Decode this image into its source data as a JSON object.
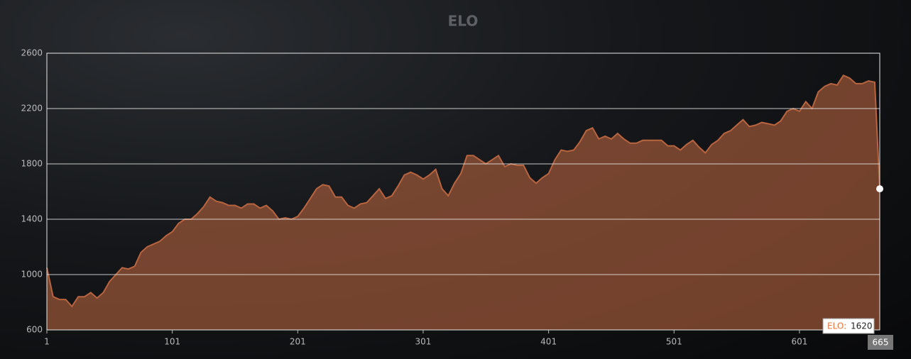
{
  "chart_data": {
    "type": "area",
    "title": "ELO",
    "x": [
      1,
      6,
      11,
      16,
      21,
      26,
      31,
      36,
      41,
      46,
      51,
      56,
      61,
      66,
      71,
      76,
      81,
      86,
      91,
      96,
      101,
      106,
      111,
      116,
      121,
      126,
      131,
      136,
      141,
      146,
      151,
      156,
      161,
      166,
      171,
      176,
      181,
      186,
      191,
      196,
      201,
      206,
      211,
      216,
      221,
      226,
      231,
      236,
      241,
      246,
      251,
      256,
      261,
      266,
      271,
      276,
      281,
      286,
      291,
      296,
      301,
      306,
      311,
      316,
      321,
      326,
      331,
      336,
      341,
      346,
      351,
      356,
      361,
      366,
      371,
      376,
      381,
      386,
      391,
      396,
      401,
      406,
      411,
      416,
      421,
      426,
      431,
      436,
      441,
      446,
      451,
      456,
      461,
      466,
      471,
      476,
      481,
      486,
      491,
      496,
      501,
      506,
      511,
      516,
      521,
      526,
      531,
      536,
      541,
      546,
      551,
      556,
      561,
      566,
      571,
      576,
      581,
      586,
      591,
      596,
      601,
      606,
      611,
      616,
      621,
      626,
      631,
      636,
      641,
      646,
      651,
      656,
      661,
      665
    ],
    "series": [
      {
        "name": "ELO",
        "color": "#b8643f",
        "values": [
          1050,
          840,
          820,
          820,
          770,
          840,
          840,
          870,
          830,
          870,
          950,
          1000,
          1050,
          1040,
          1060,
          1160,
          1200,
          1220,
          1240,
          1280,
          1310,
          1370,
          1400,
          1400,
          1440,
          1490,
          1560,
          1530,
          1520,
          1500,
          1500,
          1480,
          1510,
          1510,
          1480,
          1500,
          1460,
          1400,
          1410,
          1400,
          1420,
          1480,
          1550,
          1620,
          1650,
          1640,
          1560,
          1560,
          1500,
          1480,
          1510,
          1520,
          1570,
          1620,
          1550,
          1570,
          1640,
          1720,
          1740,
          1720,
          1690,
          1720,
          1760,
          1620,
          1570,
          1660,
          1730,
          1860,
          1860,
          1830,
          1800,
          1830,
          1860,
          1780,
          1800,
          1790,
          1790,
          1700,
          1660,
          1700,
          1730,
          1830,
          1900,
          1890,
          1900,
          1960,
          2040,
          2060,
          1980,
          2000,
          1980,
          2020,
          1980,
          1950,
          1950,
          1970,
          1970,
          1970,
          1970,
          1930,
          1930,
          1900,
          1940,
          1970,
          1920,
          1880,
          1940,
          1970,
          2020,
          2040,
          2080,
          2120,
          2070,
          2080,
          2100,
          2090,
          2080,
          2110,
          2180,
          2200,
          2180,
          2250,
          2200,
          2320,
          2360,
          2380,
          2370,
          2440,
          2420,
          2380,
          2380,
          2400,
          2390,
          1620
        ]
      }
    ],
    "xlim": [
      1,
      665
    ],
    "xticks": [
      1,
      101,
      201,
      301,
      401,
      501,
      601
    ],
    "ylim": [
      600,
      2600
    ],
    "yticks": [
      600,
      1000,
      1400,
      1800,
      2200,
      2600
    ],
    "grid": true,
    "tooltip_label": "ELO:"
  }
}
